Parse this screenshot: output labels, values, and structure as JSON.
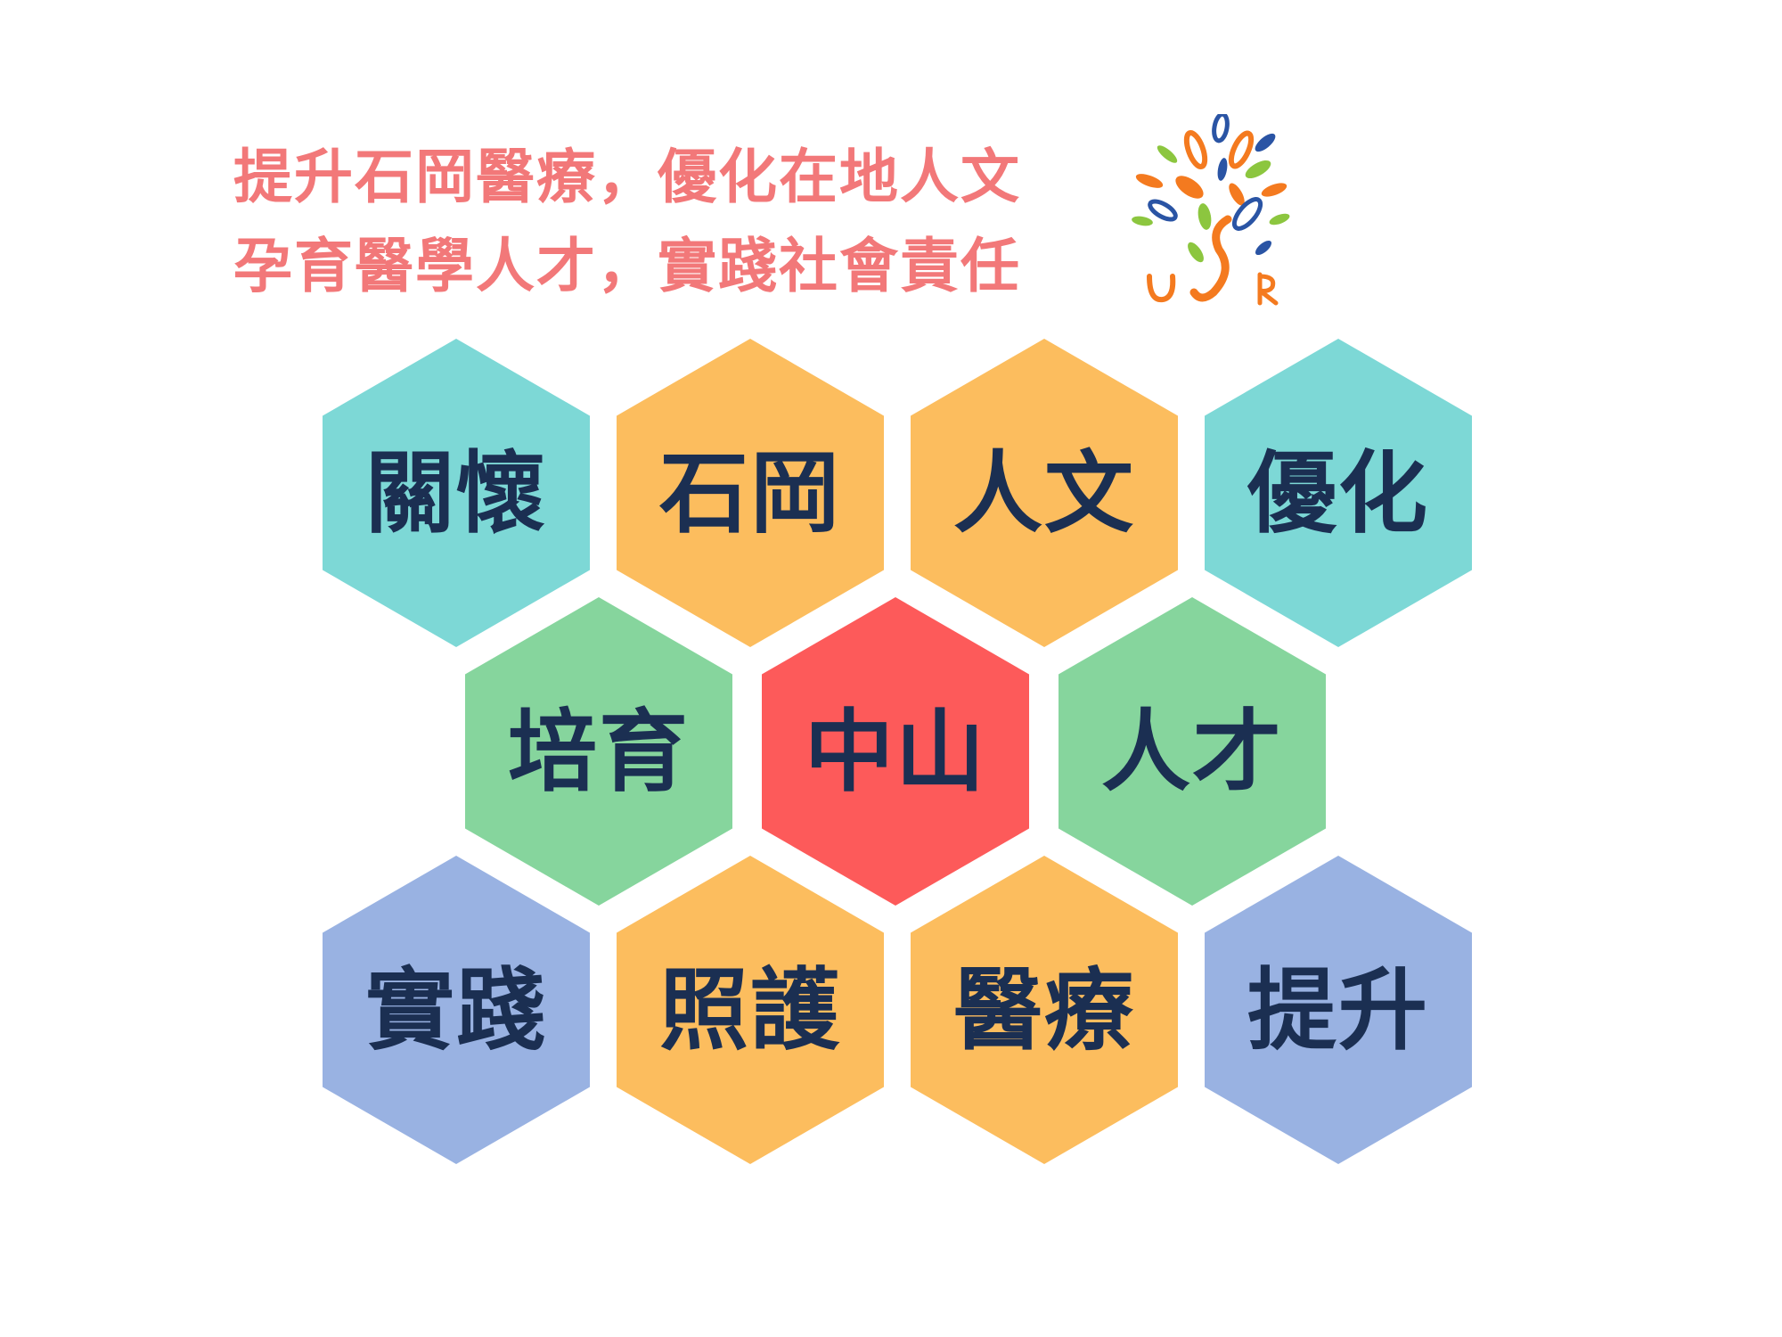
{
  "headline": {
    "line1": "提升石岡醫療，優化在地人文",
    "line2": "孕育醫學人才，實踐社會責任",
    "color": "#f27879"
  },
  "logo": {
    "letters": [
      "U",
      "S",
      "R"
    ],
    "colors": {
      "orange": "#f47a1f",
      "blue": "#2a54a4",
      "green": "#8cc63f"
    }
  },
  "colors": {
    "teal": "#7dd8d6",
    "orange": "#fcbd5e",
    "green": "#86d59d",
    "red": "#fd5a5a",
    "blue": "#99b2e2",
    "text": "#1b2f52"
  },
  "hexagons": [
    {
      "label": "關懷",
      "color": "#7dd8d6"
    },
    {
      "label": "石岡",
      "color": "#fcbd5e"
    },
    {
      "label": "人文",
      "color": "#fcbd5e"
    },
    {
      "label": "優化",
      "color": "#7dd8d6"
    },
    {
      "label": "培育",
      "color": "#86d59d"
    },
    {
      "label": "中山",
      "color": "#fd5a5a"
    },
    {
      "label": "人才",
      "color": "#86d59d"
    },
    {
      "label": "實踐",
      "color": "#99b2e2"
    },
    {
      "label": "照護",
      "color": "#fcbd5e"
    },
    {
      "label": "醫療",
      "color": "#fcbd5e"
    },
    {
      "label": "提升",
      "color": "#99b2e2"
    }
  ]
}
